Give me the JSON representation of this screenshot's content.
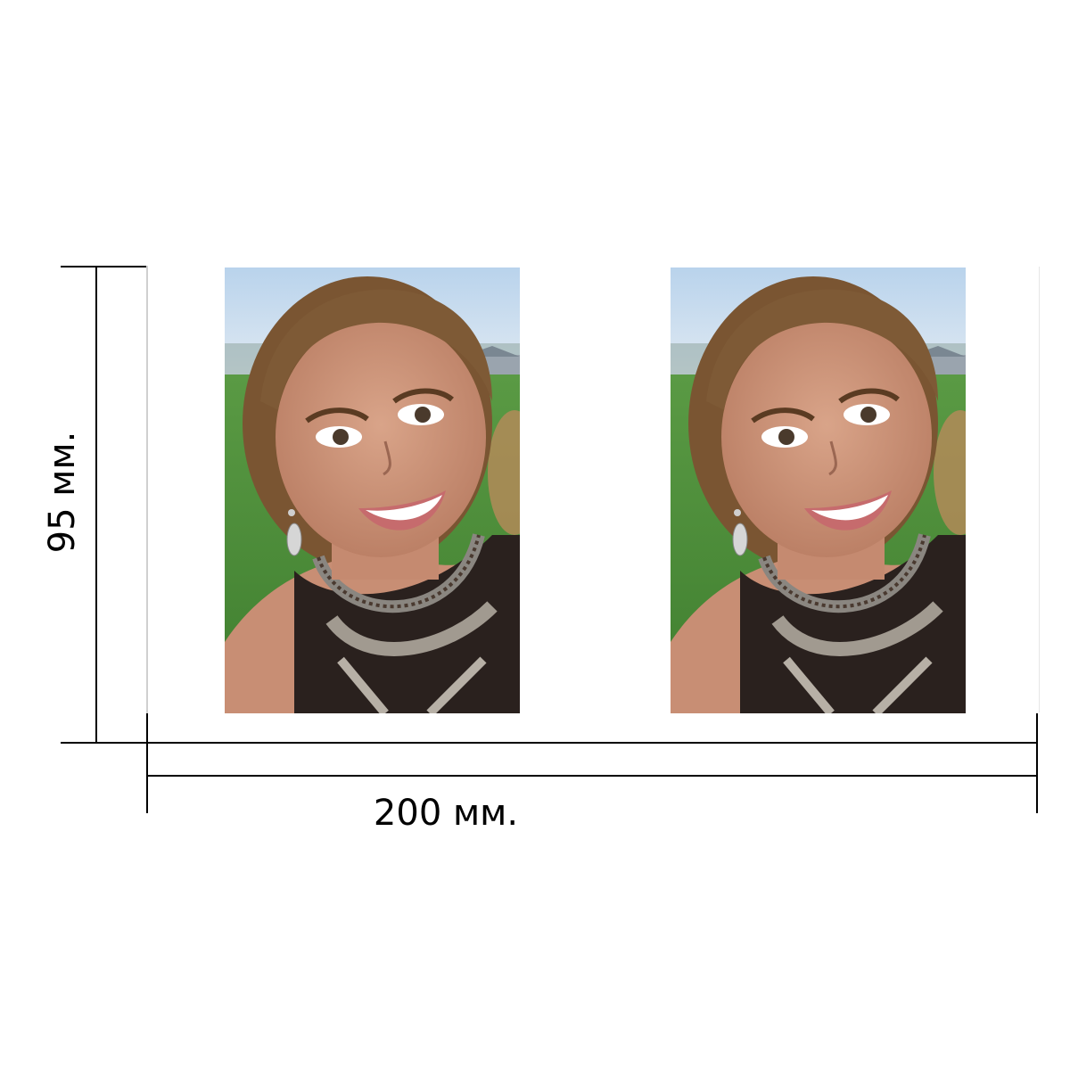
{
  "dimensions": {
    "width_label": "200 мм.",
    "height_label": "95 мм."
  },
  "photos": [
    {
      "subject": "portrait-photo"
    },
    {
      "subject": "portrait-photo"
    }
  ],
  "colors": {
    "line": "#000000",
    "sky": "#a9c7e4",
    "grass": "#4f8e3a"
  }
}
